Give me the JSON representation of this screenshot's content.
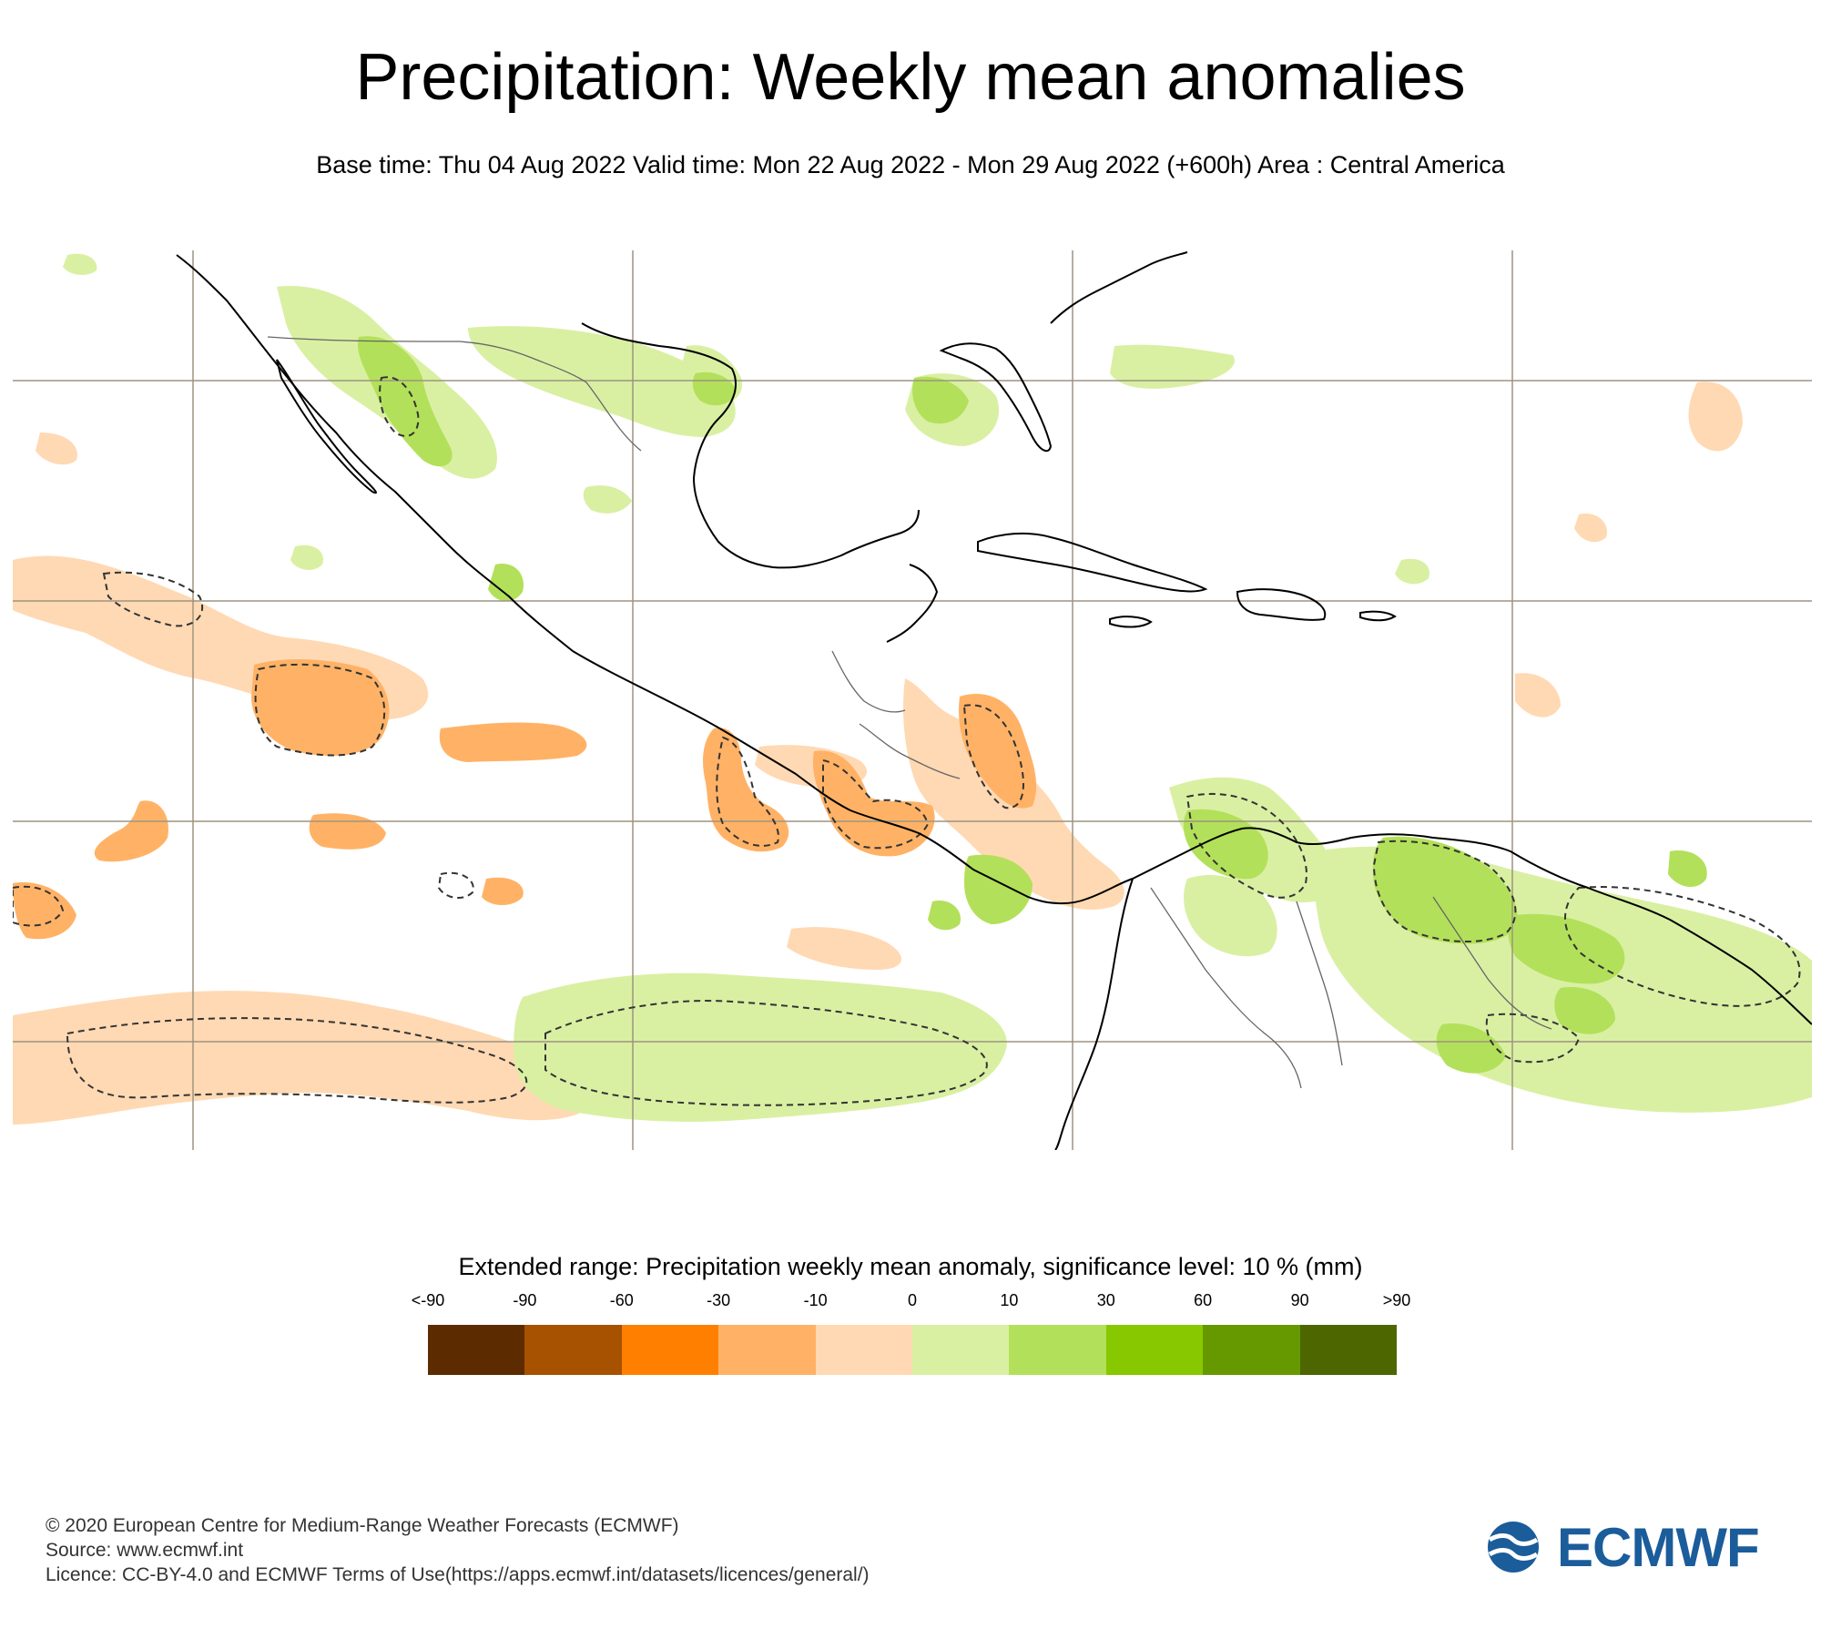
{
  "title": "Precipitation: Weekly mean anomalies",
  "subtitle": "Base time: Thu 04 Aug 2022 Valid time: Mon 22 Aug 2022 - Mon 29 Aug 2022 (+600h) Area : Central America",
  "map": {
    "region": "Central America",
    "features": [
      "coastlines",
      "borders",
      "graticule",
      "anomaly-shading",
      "significance-contours"
    ]
  },
  "legend": {
    "title": "Extended range: Precipitation weekly mean anomaly, significance level: 10 % (mm)",
    "ticks": [
      "<-90",
      "-90",
      "-60",
      "-30",
      "-10",
      "0",
      "10",
      "30",
      "60",
      "90",
      ">90"
    ],
    "colors": [
      "#5c2c00",
      "#a65200",
      "#ff8000",
      "#ffb266",
      "#ffd9b3",
      "#d9f0a3",
      "#b3e05a",
      "#87c800",
      "#669900",
      "#4d6600"
    ]
  },
  "colors": {
    "dry_light": "#ffd9b3",
    "dry_medium": "#ffb266",
    "wet_light": "#d9f0a3",
    "wet_medium": "#b3e05a",
    "grid": "#9e9480",
    "coast": "#000000",
    "brand": "#1b5c9a"
  },
  "footer": {
    "copyright": "© 2020 European Centre for Medium-Range Weather Forecasts (ECMWF)",
    "source": "Source: www.ecmwf.int",
    "licence": "Licence: CC-BY-4.0 and ECMWF Terms of Use(https://apps.ecmwf.int/datasets/licences/general/)"
  },
  "logo": {
    "text": "ECMWF",
    "icon": "ecmwf-logo-icon"
  }
}
